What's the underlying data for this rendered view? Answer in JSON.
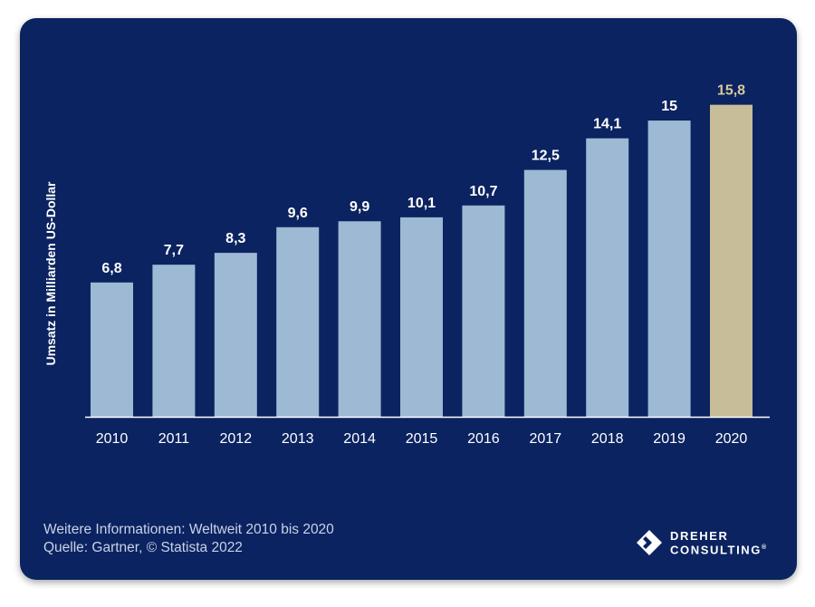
{
  "chart_data": {
    "type": "bar",
    "categories": [
      "2010",
      "2011",
      "2012",
      "2013",
      "2014",
      "2015",
      "2016",
      "2017",
      "2018",
      "2019",
      "2020"
    ],
    "values": [
      6.8,
      7.7,
      8.3,
      9.6,
      9.9,
      10.1,
      10.7,
      12.5,
      14.1,
      15,
      15.8
    ],
    "value_labels": [
      "6,8",
      "7,7",
      "8,3",
      "9,6",
      "9,9",
      "10,1",
      "10,7",
      "12,5",
      "14,1",
      "15",
      "15,8"
    ],
    "ylabel": "Umsatz in Milliarden US-Dollar",
    "xlabel": "",
    "ylim": [
      0,
      19.5
    ],
    "grid": false,
    "colors": {
      "bar": "#9db9d4",
      "highlight_bar": "#c8bd99",
      "highlight_label": "#d8c99b",
      "background": "#0b2360",
      "text": "#ffffff"
    },
    "highlight_index": 10
  },
  "footer": {
    "info": "Weitere Informationen: Weltweit 2010 bis 2020",
    "source": "Quelle: Gartner, © Statista 2022"
  },
  "logo": {
    "line1": "DREHER",
    "line2": "CONSULTING",
    "mark": "®",
    "icon": "dreher-diamond-icon"
  }
}
